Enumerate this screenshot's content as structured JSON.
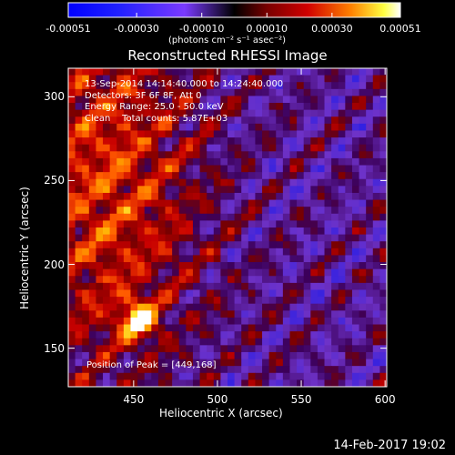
{
  "colorbar": {
    "tick_labels": [
      "-0.00051",
      "-0.00030",
      "-0.00010",
      "0.00010",
      "0.00030",
      "0.00051"
    ],
    "units": "(photons cm⁻² s⁻¹ asec⁻²)",
    "range": [
      -0.00051,
      0.00051
    ]
  },
  "info_lines": [
    "13-Sep-2014 14:14:40.000 to 14:24:40.000",
    "Detectors: 3F 6F 8F, Att 0",
    "Energy Range: 25.0 - 50.0 keV",
    "Clean    Total counts: 5.87E+03"
  ],
  "peak_text": "Position of Peak = [449,168]",
  "timestamp": "14-Feb-2017 19:02",
  "chart_data": {
    "type": "heatmap",
    "title": "Reconstructed RHESSI Image",
    "xlabel": "Heliocentric X (arcsec)",
    "ylabel": "Heliocentric Y (arcsec)",
    "xlim": [
      411,
      601
    ],
    "ylim": [
      127,
      317
    ],
    "xticks": [
      450,
      500,
      550,
      600
    ],
    "yticks": [
      150,
      200,
      250,
      300
    ],
    "peak_position": [
      449,
      168
    ]
  }
}
